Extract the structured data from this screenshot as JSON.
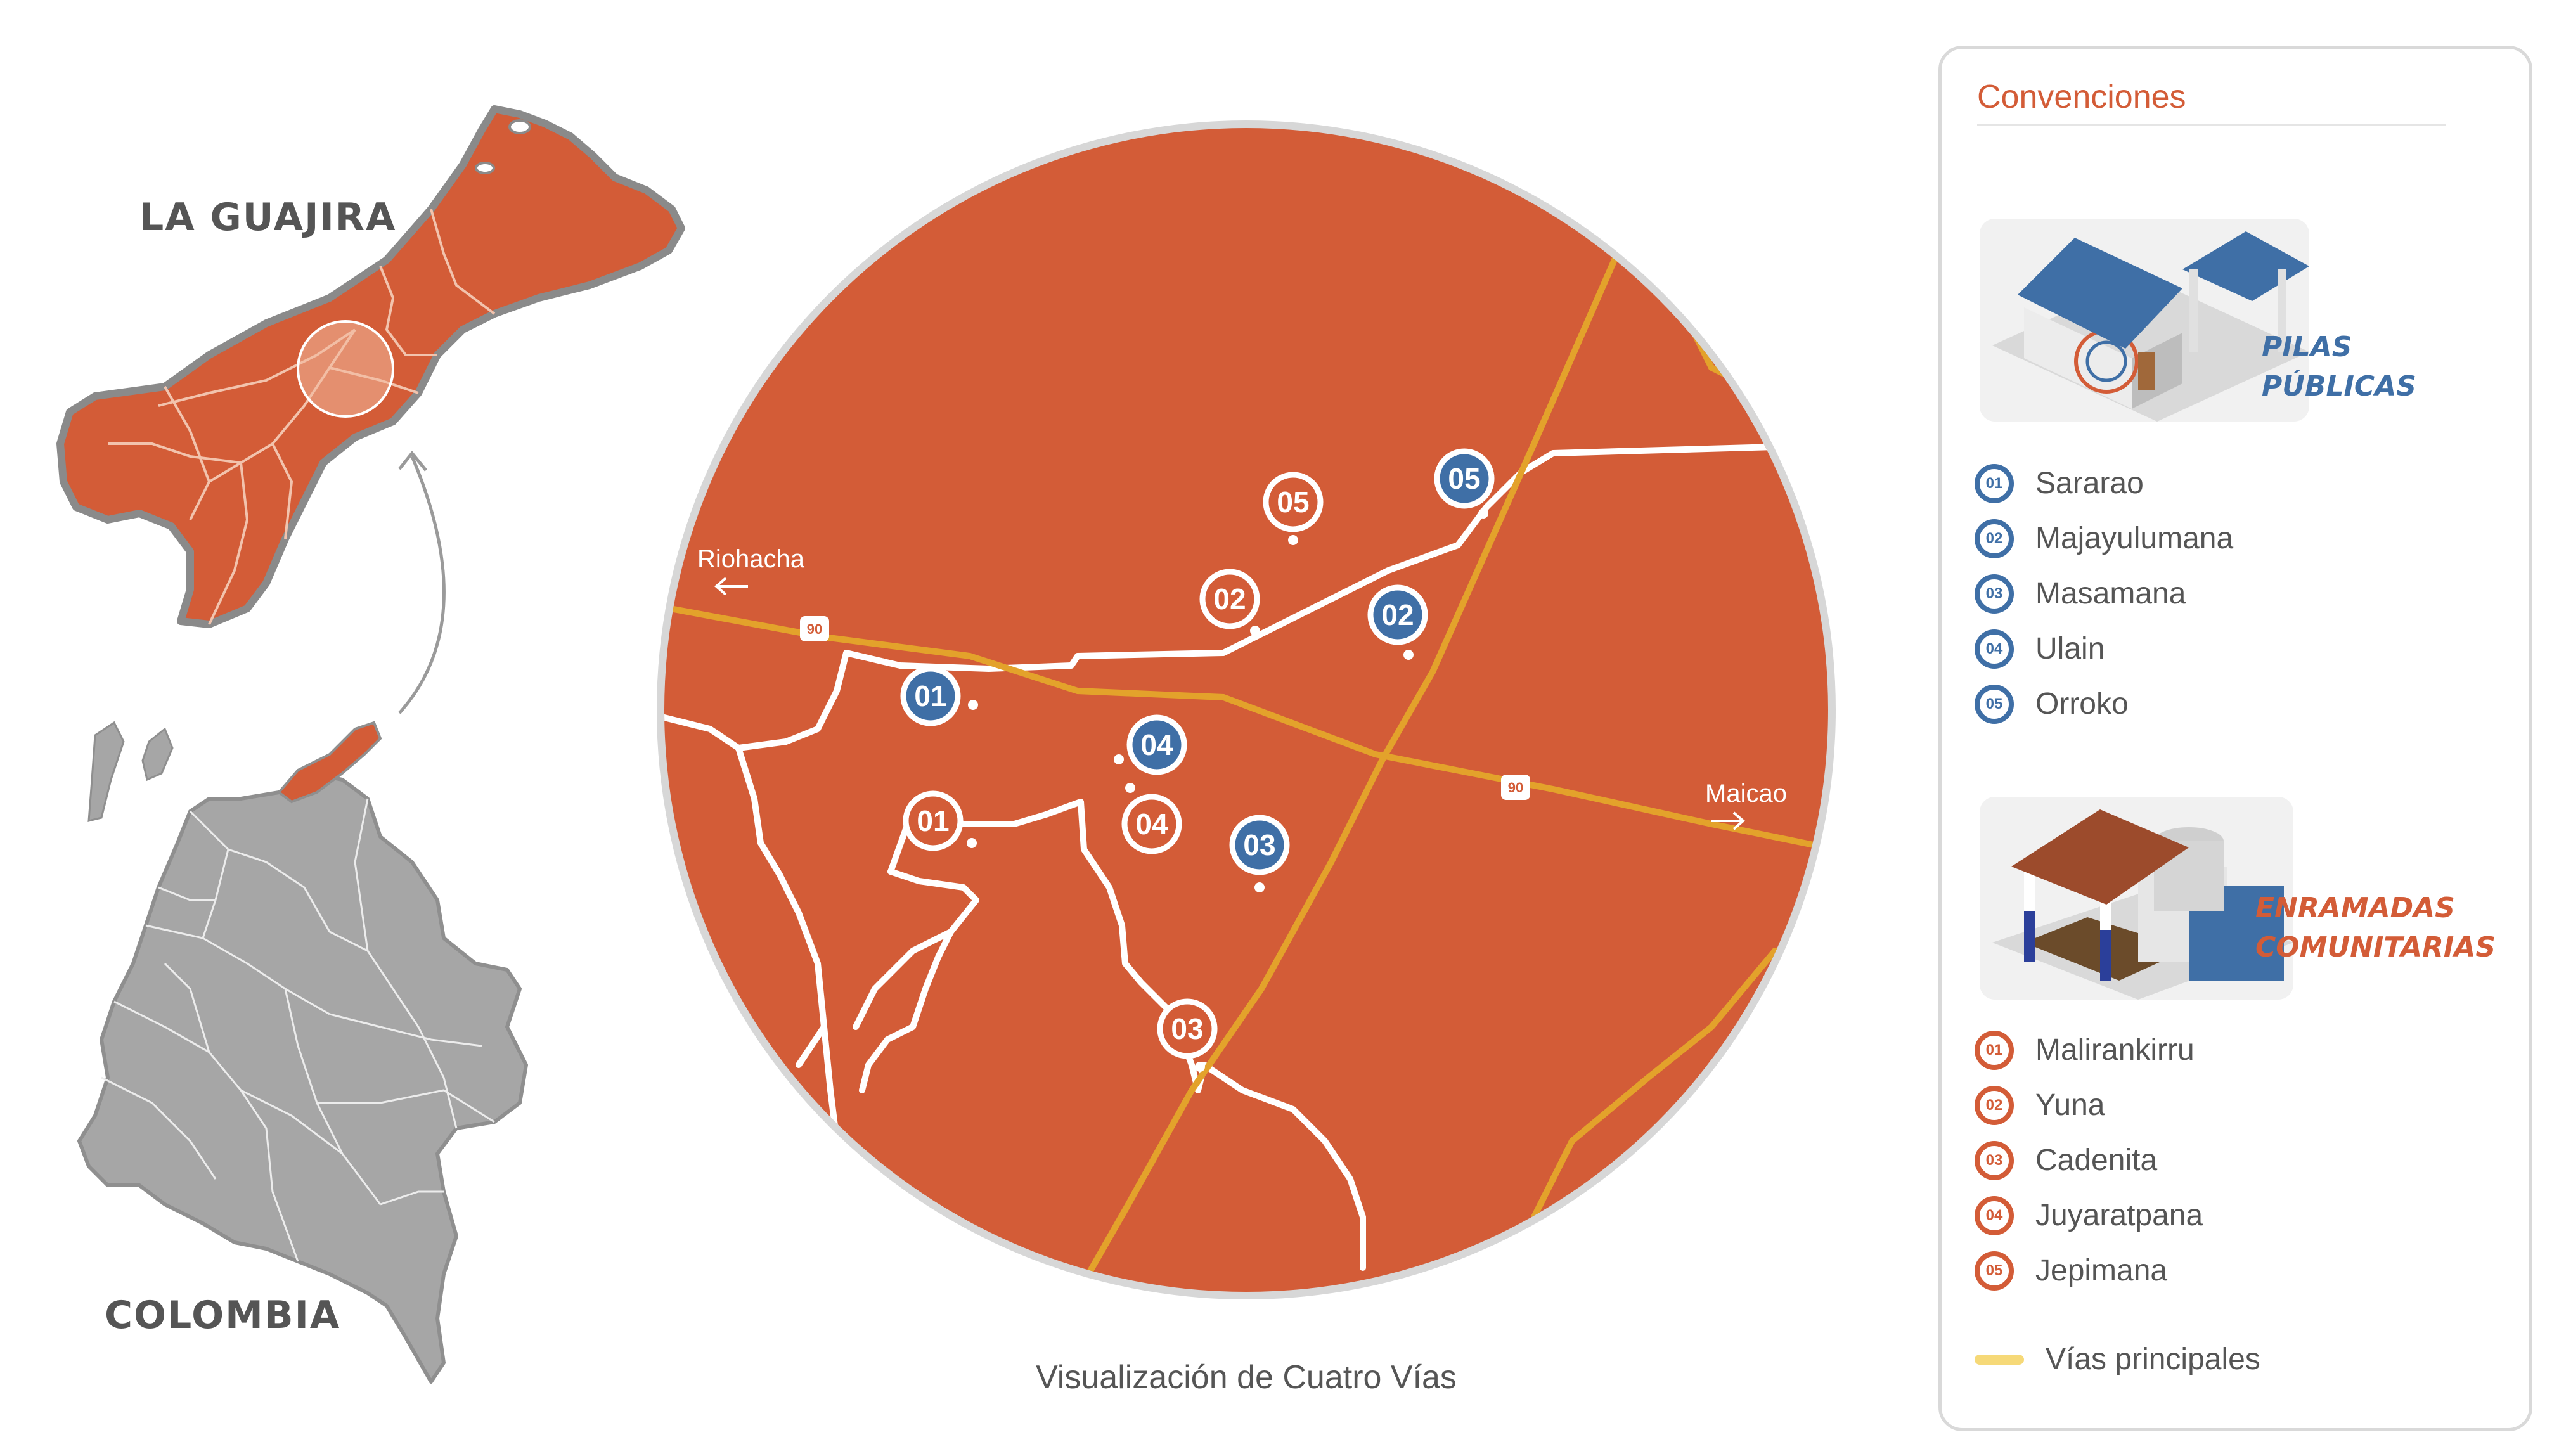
{
  "regions": {
    "guajira_label": "LA GUAJIRA",
    "colombia_label": "COLOMBIA"
  },
  "map": {
    "caption": "Visualización de Cuatro Vías",
    "road_labels": {
      "riohacha": "Riohacha",
      "maicao": "Maicao",
      "route": "90"
    },
    "markers_blue": [
      {
        "num": "01",
        "place": "Sararao"
      },
      {
        "num": "02",
        "place": "Majayulumana"
      },
      {
        "num": "03",
        "place": "Masamana"
      },
      {
        "num": "04",
        "place": "Ulain"
      },
      {
        "num": "05",
        "place": "Orroko"
      }
    ],
    "markers_orange": [
      {
        "num": "01",
        "place": "Malirankirru"
      },
      {
        "num": "02",
        "place": "Yuna"
      },
      {
        "num": "03",
        "place": "Cadenita"
      },
      {
        "num": "04",
        "place": "Juyaratpana"
      },
      {
        "num": "05",
        "place": "Jepimana"
      }
    ]
  },
  "legend": {
    "title": "Convenciones",
    "pilas_title_line1": "PILAS",
    "pilas_title_line2": "PÚBLICAS",
    "enramadas_title_line1": "ENRAMADAS",
    "enramadas_title_line2": "COMUNITARIAS",
    "roads_label": "Vías principales"
  },
  "colors": {
    "territory": "#d35c37",
    "blue_marker": "#3f6fa6",
    "orange_marker": "#d35c37",
    "main_roads": "#e3a22b",
    "roads_legend": "#f6d978",
    "country_gray": "#a6a6a6"
  }
}
